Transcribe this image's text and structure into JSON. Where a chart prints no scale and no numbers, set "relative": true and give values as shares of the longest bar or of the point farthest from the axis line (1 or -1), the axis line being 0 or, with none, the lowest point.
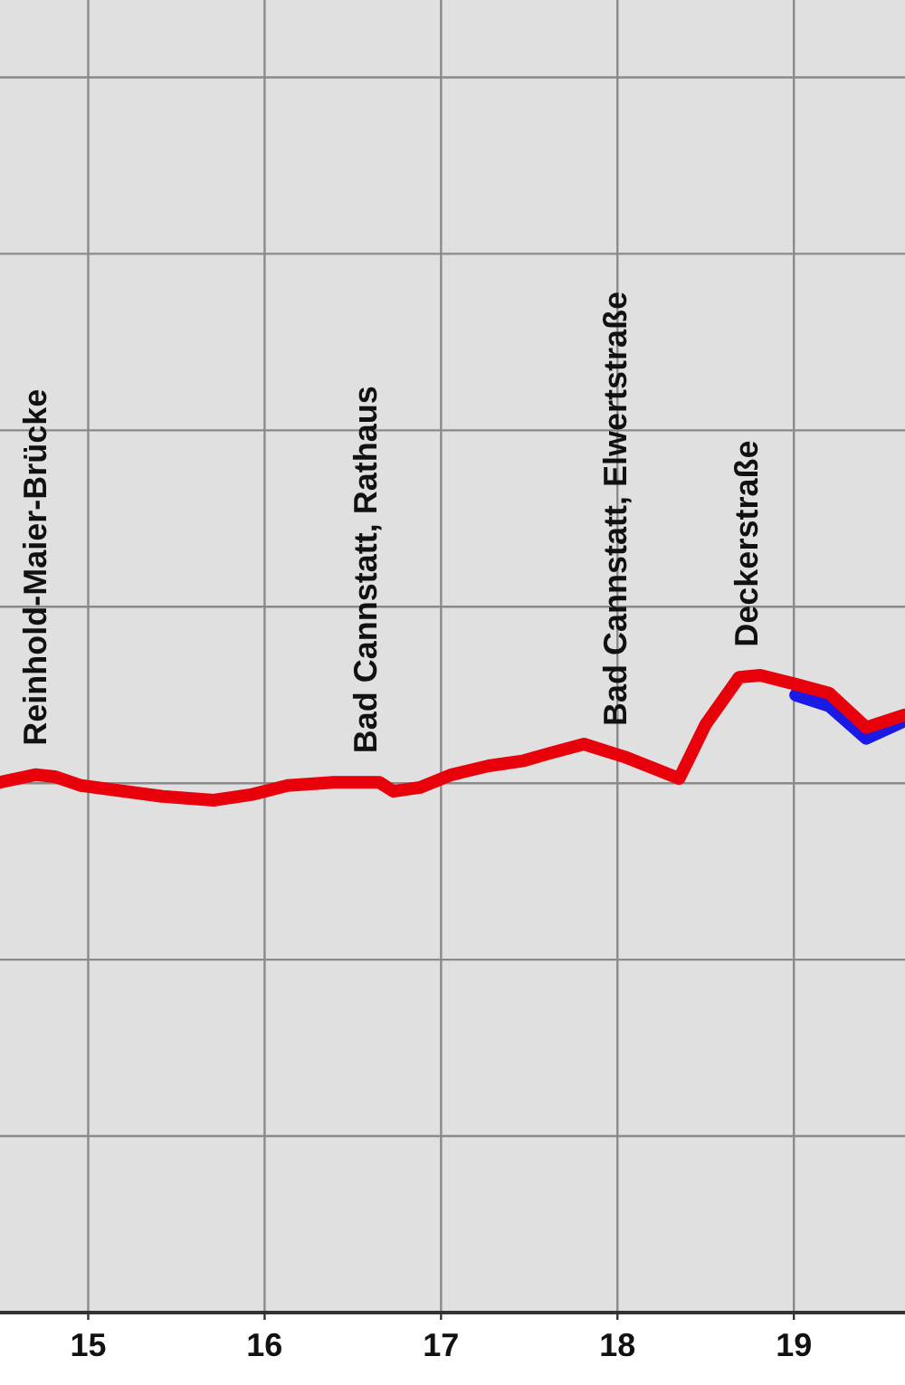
{
  "chart_data": {
    "type": "line",
    "relative": true,
    "xlim": [
      14.5,
      19.63
    ],
    "xticks": [
      15,
      16,
      17,
      18,
      19
    ],
    "grid": true,
    "tick_labels": "x",
    "series": [
      {
        "color": "#1a1ae6",
        "x": [
          19.01,
          19.2,
          19.41,
          19.63
        ],
        "values": [
          0.969,
          0.952,
          0.901,
          0.929
        ]
      },
      {
        "color": "#e8000b",
        "x": [
          14.5,
          14.7,
          14.81,
          14.96,
          15.42,
          15.71,
          15.93,
          16.13,
          16.39,
          16.65,
          16.73,
          16.88,
          17.06,
          17.27,
          17.47,
          17.62,
          17.81,
          18.04,
          18.35,
          18.5,
          18.69,
          18.81,
          19.01,
          19.2,
          19.41,
          19.63
        ],
        "values": [
          0.832,
          0.844,
          0.841,
          0.827,
          0.81,
          0.804,
          0.813,
          0.827,
          0.832,
          0.832,
          0.818,
          0.824,
          0.844,
          0.858,
          0.866,
          0.878,
          0.892,
          0.872,
          0.838,
          0.923,
          0.997,
          1,
          0.986,
          0.972,
          0.918,
          0.938
        ]
      }
    ],
    "annotations": [
      {
        "text": "Reinhold-Maier-Brücke",
        "x": 14.7,
        "y": 0.844
      },
      {
        "text": "Bad Cannstatt, Rathaus",
        "x": 16.57,
        "y": 0.832
      },
      {
        "text": "Bad Cannstatt, Elwertstraße",
        "x": 17.99,
        "y": 0.875
      },
      {
        "text": "Deckerstraße",
        "x": 18.73,
        "y": 0.999
      }
    ]
  }
}
